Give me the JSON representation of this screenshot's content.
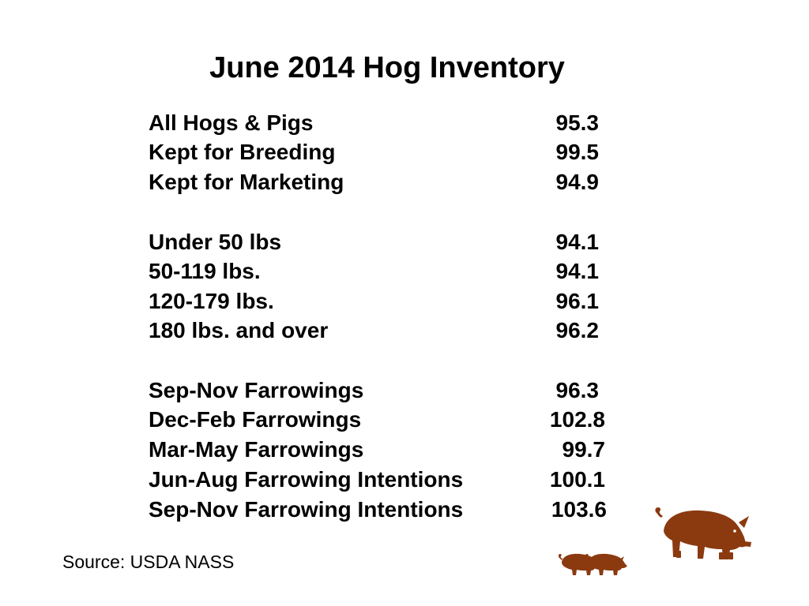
{
  "title": "June 2014 Hog Inventory",
  "rows": [
    {
      "label": "All Hogs & Pigs",
      "value": "95.3"
    },
    {
      "label": "Kept for Breeding",
      "value": "99.5"
    },
    {
      "label": "Kept for Marketing",
      "value": "94.9"
    },
    {
      "label": "Under 50 lbs",
      "value": "94.1"
    },
    {
      "label": "50-119 lbs.",
      "value": "94.1"
    },
    {
      "label": "120-179 lbs.",
      "value": "96.1"
    },
    {
      "label": "180 lbs. and over",
      "value": "96.2"
    },
    {
      "label": "Sep-Nov Farrowings",
      "value": "96.3"
    },
    {
      "label": "Dec-Feb Farrowings",
      "value": "102.8"
    },
    {
      "label": "Mar-May Farrowings",
      "value": "99.7"
    },
    {
      "label": "Jun-Aug Farrowing Intentions",
      "value": "100.1"
    },
    {
      "label": "Sep-Nov Farrowing Intentions",
      "value": "103.6"
    }
  ],
  "source": "Source: USDA NASS",
  "colors": {
    "text": "#000000",
    "background": "#ffffff",
    "pig": "#8b3a10"
  },
  "icons": {
    "large": "pig-icon",
    "small": "piglet-icon"
  }
}
